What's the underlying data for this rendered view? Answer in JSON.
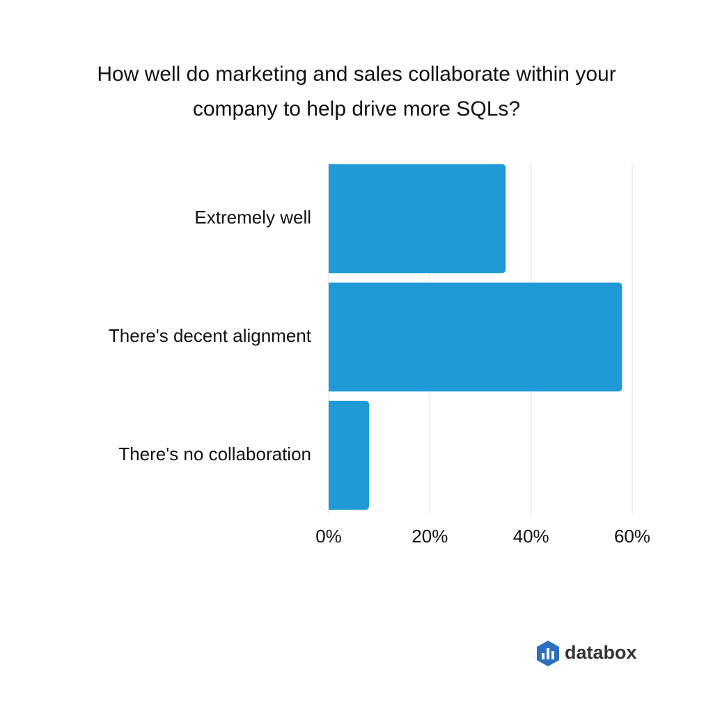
{
  "chart_data": {
    "type": "barh",
    "title": "How well do marketing and sales collaborate within your company to help drive more SQLs?",
    "categories": [
      "Extremely well",
      "There's decent alignment",
      "There's no collaboration"
    ],
    "values": [
      35,
      58,
      8
    ],
    "color": "#1f9ad6",
    "xlim": [
      0,
      60
    ],
    "xticks": [
      {
        "value": 0,
        "label": "0%"
      },
      {
        "value": 20,
        "label": "20%"
      },
      {
        "value": 40,
        "label": "40%"
      },
      {
        "value": 60,
        "label": "60%"
      }
    ],
    "grid": true
  },
  "brand": "databox"
}
